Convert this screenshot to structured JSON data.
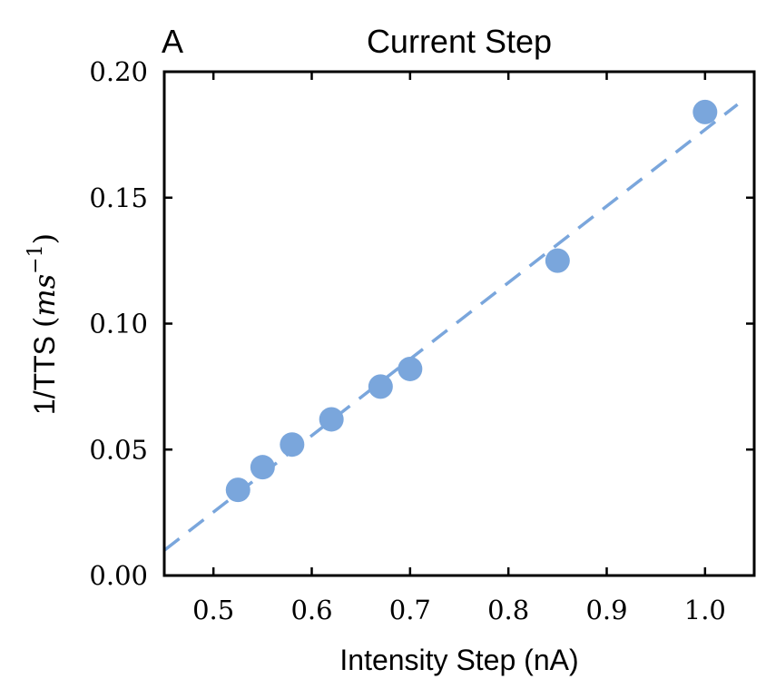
{
  "panel_label": "A",
  "chart_data": {
    "type": "scatter",
    "title": "Current Step",
    "xlabel": "Intensity Step (nA)",
    "ylabel_text": "1/TTS ",
    "ylabel_unit_base": "ms",
    "ylabel_unit_exponent": "−1",
    "xlim": [
      0.45,
      1.05
    ],
    "ylim": [
      0.0,
      0.2
    ],
    "xticks": [
      0.5,
      0.6,
      0.7,
      0.8,
      0.9,
      1.0
    ],
    "xtick_labels": [
      "0.5",
      "0.6",
      "0.7",
      "0.8",
      "0.9",
      "1.0"
    ],
    "yticks": [
      0.0,
      0.05,
      0.1,
      0.15,
      0.2
    ],
    "ytick_labels": [
      "0.00",
      "0.05",
      "0.10",
      "0.15",
      "0.20"
    ],
    "grid": false,
    "series": [
      {
        "kind": "points",
        "color": "#7aa6dc",
        "x": [
          0.525,
          0.55,
          0.58,
          0.62,
          0.67,
          0.7,
          0.85,
          1.0
        ],
        "y": [
          0.034,
          0.043,
          0.052,
          0.062,
          0.075,
          0.082,
          0.125,
          0.184
        ]
      },
      {
        "kind": "fit-line",
        "style": "dashed",
        "color": "#7aa6dc",
        "x": [
          0.45,
          1.033
        ],
        "y": [
          0.01,
          0.187
        ]
      }
    ]
  }
}
